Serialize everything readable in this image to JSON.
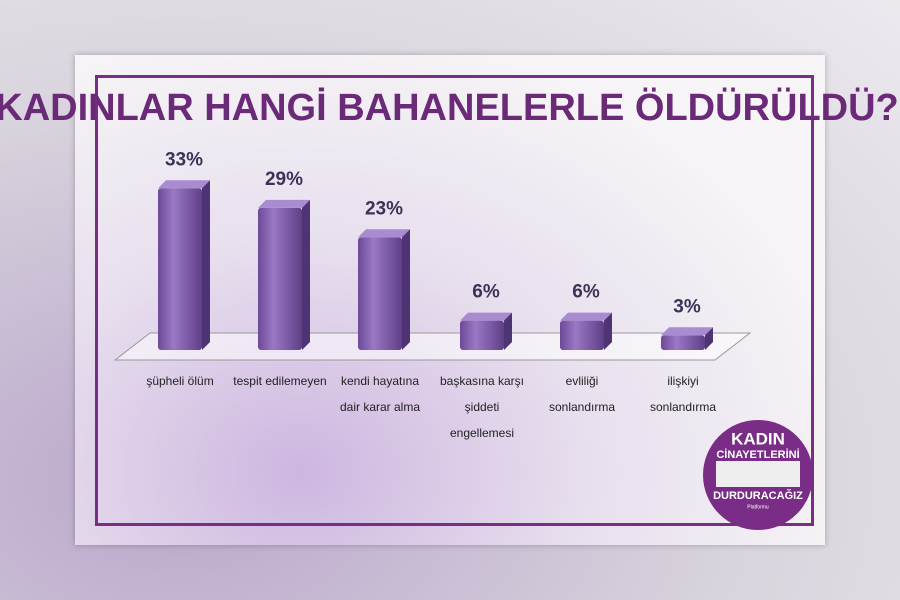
{
  "chart_data": {
    "type": "bar",
    "title": "KADINLAR HANGİ BAHANELERLE ÖLDÜRÜLDÜ?",
    "categories": [
      "şüpheli ölüm",
      "tespit edilemeyen",
      "kendi hayatına dair karar alma",
      "başkasına karşı şiddeti engellemesi",
      "evliliği sonlandırma",
      "ilişkiyi sonlandırma"
    ],
    "values": [
      33,
      29,
      23,
      6,
      6,
      3
    ],
    "value_labels": [
      "33%",
      "29%",
      "23%",
      "6%",
      "6%",
      "3%"
    ],
    "color": "#8460b0"
  },
  "logo": {
    "line1": "KADIN",
    "line2": "CİNAYETLERİNİ",
    "line3": "DURDURACAĞIZ",
    "line4": "Platformu"
  }
}
